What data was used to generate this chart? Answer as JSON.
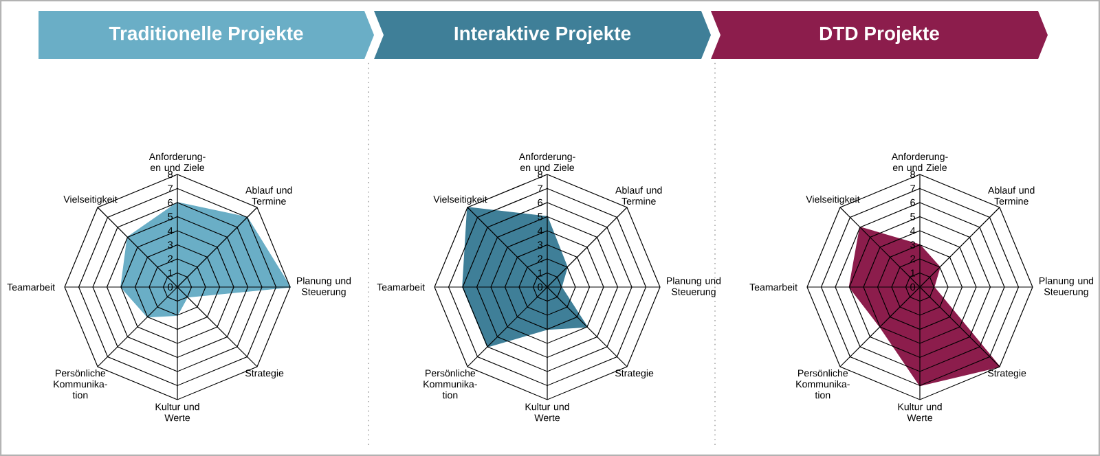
{
  "chart_data": [
    {
      "type": "radar",
      "title": "Traditionelle Projekte",
      "categories": [
        "Anforderung- en und Ziele",
        "Ablauf und Termine",
        "Planung und Steuerung",
        "Strategie",
        "Kultur und Werte",
        "Persönliche Kommunika- tion",
        "Teamarbeit",
        "Vielseitigkeit"
      ],
      "ylim": [
        0,
        8
      ],
      "yticks": [
        0,
        1,
        2,
        3,
        4,
        5,
        6,
        7,
        8
      ],
      "series": [
        {
          "color": "#6aaec6",
          "values": [
            6,
            7,
            8,
            1,
            2,
            3,
            4,
            5
          ]
        }
      ]
    },
    {
      "type": "radar",
      "title": "Interaktive Projekte",
      "categories": [
        "Anforderung- en und Ziele",
        "Ablauf und Termine",
        "Planung und Steuerung",
        "Strategie",
        "Kultur und Werte",
        "Persönliche Kommunika- tion",
        "Teamarbeit",
        "Vielseitigkeit"
      ],
      "ylim": [
        0,
        8
      ],
      "yticks": [
        0,
        1,
        2,
        3,
        4,
        5,
        6,
        7,
        8
      ],
      "series": [
        {
          "color": "#3f7f98",
          "values": [
            5,
            2,
            1,
            4,
            3,
            6,
            6,
            8
          ]
        }
      ]
    },
    {
      "type": "radar",
      "title": "DTD Projekte",
      "categories": [
        "Anforderung- en und Ziele",
        "Ablauf und Termine",
        "Planung und Steuerung",
        "Strategie",
        "Kultur und Werte",
        "Persönliche Kommunika- tion",
        "Teamarbeit",
        "Vielseitigkeit"
      ],
      "ylim": [
        0,
        8
      ],
      "yticks": [
        0,
        1,
        2,
        3,
        4,
        5,
        6,
        7,
        8
      ],
      "series": [
        {
          "color": "#8c1d4c",
          "values": [
            3,
            2,
            1,
            8,
            7,
            4,
            5,
            6
          ]
        }
      ]
    }
  ]
}
